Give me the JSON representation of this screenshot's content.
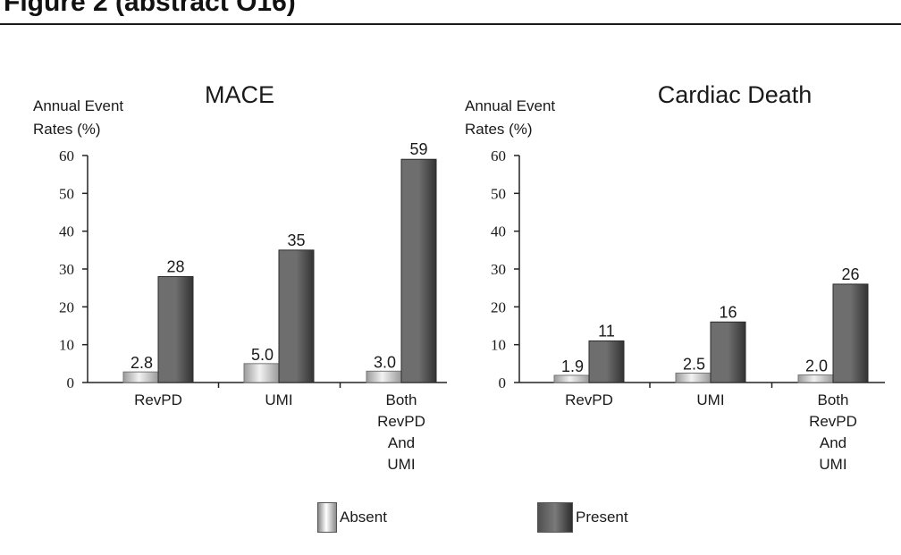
{
  "figure_title": "Figure 2 (abstract O16)",
  "colors": {
    "absent_light": "#f2f2f2",
    "absent_dark": "#9a9a9a",
    "present_light": "#6e6e6e",
    "present_dark": "#333333",
    "axis": "#222222",
    "text": "#1a1a1a"
  },
  "legend": {
    "absent_label": "Absent",
    "present_label": "Present"
  },
  "chart_data": [
    {
      "type": "bar",
      "title": "MACE",
      "ylabel_lines": [
        "Annual Event",
        "Rates (%)"
      ],
      "xlabel": "",
      "ylim": [
        0,
        60
      ],
      "yticks": [
        0,
        10,
        20,
        30,
        40,
        50,
        60
      ],
      "categories": [
        [
          "RevPD"
        ],
        [
          "UMI"
        ],
        [
          "Both",
          "RevPD",
          "And",
          "UMI"
        ]
      ],
      "series": [
        {
          "name": "Absent",
          "values": [
            2.8,
            5.0,
            3.0
          ],
          "labels": [
            "2.8",
            "5.0",
            "3.0"
          ]
        },
        {
          "name": "Present",
          "values": [
            28,
            35,
            59
          ],
          "labels": [
            "28",
            "35",
            "59"
          ]
        }
      ]
    },
    {
      "type": "bar",
      "title": "Cardiac Death",
      "ylabel_lines": [
        "Annual Event",
        "Rates (%)"
      ],
      "xlabel": "",
      "ylim": [
        0,
        60
      ],
      "yticks": [
        0,
        10,
        20,
        30,
        40,
        50,
        60
      ],
      "categories": [
        [
          "RevPD"
        ],
        [
          "UMI"
        ],
        [
          "Both",
          "RevPD",
          "And",
          "UMI"
        ]
      ],
      "series": [
        {
          "name": "Absent",
          "values": [
            1.9,
            2.5,
            2.0
          ],
          "labels": [
            "1.9",
            "2.5",
            "2.0"
          ]
        },
        {
          "name": "Present",
          "values": [
            11,
            16,
            26
          ],
          "labels": [
            "11",
            "16",
            "26"
          ]
        }
      ]
    }
  ]
}
